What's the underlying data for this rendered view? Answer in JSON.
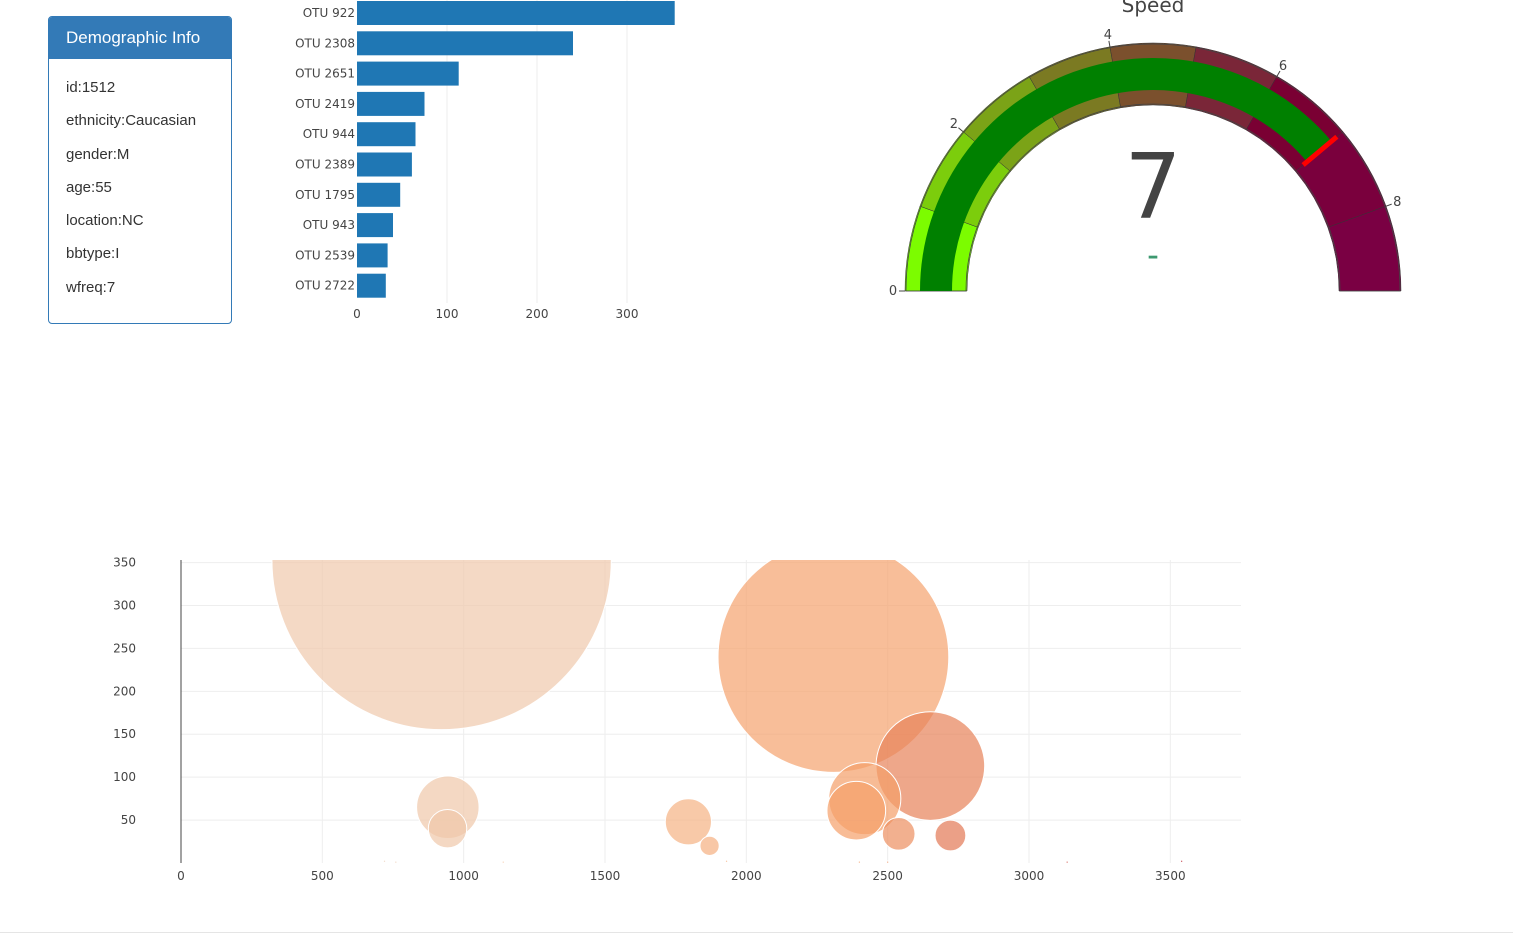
{
  "panel": {
    "title": "Demographic Info",
    "items": [
      "id:1512",
      "ethnicity:Caucasian",
      "gender:M",
      "age:55",
      "location:NC",
      "bbtype:I",
      "wfreq:7"
    ]
  },
  "bar_chart": {
    "type": "bar",
    "orientation": "horizontal",
    "categories": [
      "OTU 922",
      "OTU 2308",
      "OTU 2651",
      "OTU 2419",
      "OTU 944",
      "OTU 2389",
      "OTU 1795",
      "OTU 943",
      "OTU 2539",
      "OTU 2722"
    ],
    "values": [
      353,
      240,
      113,
      75,
      65,
      61,
      48,
      40,
      34,
      32
    ],
    "xticks": [
      0,
      100,
      200,
      300
    ],
    "xlim": [
      0,
      353
    ],
    "color": "#1f77b4"
  },
  "gauge": {
    "title": "Speed",
    "value": "7",
    "value_num": 7,
    "delta": "–",
    "range": [
      0,
      9
    ],
    "ticks": [
      "0",
      "2",
      "4",
      "6",
      "8"
    ],
    "colors": {
      "bar": "#008000",
      "needle": "#ff0000",
      "steps": [
        "#7cfc00",
        "#7ccd0c",
        "#7ba317",
        "#7b7a22",
        "#7b502d",
        "#7a2638",
        "#7a0033",
        "#7a003d",
        "#7a0043"
      ]
    }
  },
  "chart_data": {
    "type": "scatter",
    "mode": "markers",
    "x": [
      922,
      2308,
      2651,
      2419,
      944,
      2389,
      1795,
      943,
      2539,
      2722,
      1870,
      1930,
      720,
      760,
      1140,
      3540,
      3135,
      2400,
      2500
    ],
    "y": [
      353,
      240,
      113,
      75,
      65,
      61,
      48,
      40,
      34,
      32,
      20,
      2,
      2,
      1,
      1,
      2,
      1,
      1,
      1
    ],
    "xticks": [
      0,
      500,
      1000,
      1500,
      2000,
      2500,
      3000,
      3500
    ],
    "yticks": [
      50,
      100,
      150,
      200,
      250,
      300,
      350
    ],
    "xlim": [
      0,
      3750
    ],
    "ylim": [
      0,
      353
    ],
    "colorscale": "reds",
    "grid": true
  }
}
